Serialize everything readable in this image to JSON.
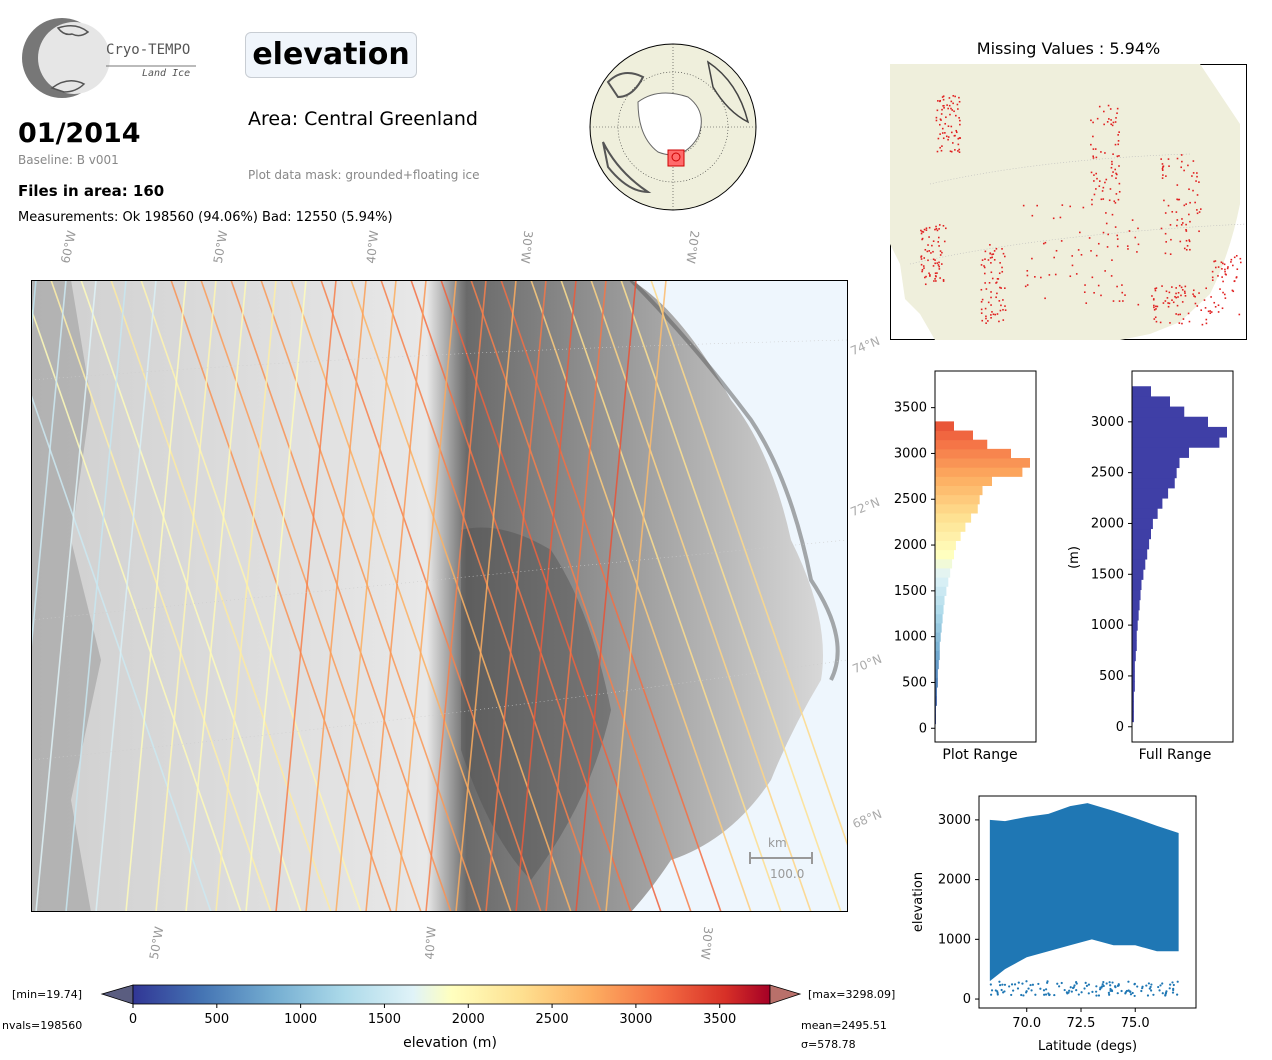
{
  "header": {
    "logo_text": "Cryo-TEMPO",
    "logo_subtext": "Land Ice",
    "variable": "elevation",
    "date": "01/2014",
    "baseline": "Baseline: B v001",
    "files": "Files in area: 160",
    "measurements": "Measurements: Ok 198560 (94.06%) Bad: 12550 (5.94%)",
    "area": "Area: Central Greenland",
    "mask": "Plot data mask: grounded+floating ice"
  },
  "map": {
    "lon_labels_top": [
      "60°W",
      "50°W",
      "40°W",
      "30°W",
      "20°W"
    ],
    "lon_labels_bottom": [
      "50°W",
      "40°W",
      "30°W"
    ],
    "lat_labels": [
      "74°N",
      "72°N",
      "70°N",
      "68°N"
    ],
    "scale_unit": "km",
    "scale_value": "100.0"
  },
  "missing_values": {
    "title": "Missing Values : 5.94%"
  },
  "colorbar": {
    "min_label": "[min=19.74]",
    "max_label": "[max=3298.09]",
    "nvals": "nvals=198560",
    "mean": "mean=2495.51",
    "sigma": "σ=578.78",
    "label": "elevation (m)",
    "ticks": [
      "0",
      "500",
      "1000",
      "1500",
      "2000",
      "2500",
      "3000",
      "3500"
    ]
  },
  "chart_data": [
    {
      "type": "bar",
      "orientation": "horizontal",
      "xlabel": "Plot Range",
      "ylabel": "",
      "ylim": [
        -150,
        3900
      ],
      "yticks": [
        0,
        500,
        1000,
        1500,
        2000,
        2500,
        3000,
        3500
      ],
      "bins_m": [
        100,
        200,
        300,
        400,
        500,
        600,
        700,
        800,
        900,
        1000,
        1100,
        1200,
        1300,
        1400,
        1500,
        1600,
        1700,
        1800,
        1900,
        2000,
        2100,
        2200,
        2300,
        2400,
        2500,
        2600,
        2700,
        2800,
        2900,
        3000,
        3100,
        3200,
        3300
      ],
      "relative_counts": [
        0.01,
        0.01,
        0.02,
        0.02,
        0.03,
        0.03,
        0.04,
        0.05,
        0.05,
        0.06,
        0.07,
        0.08,
        0.09,
        0.1,
        0.12,
        0.14,
        0.16,
        0.18,
        0.2,
        0.22,
        0.27,
        0.32,
        0.38,
        0.45,
        0.47,
        0.5,
        0.6,
        0.92,
        1.0,
        0.8,
        0.55,
        0.4,
        0.2
      ]
    },
    {
      "type": "bar",
      "orientation": "horizontal",
      "xlabel": "Full Range",
      "ylabel": "(m)",
      "ylim": [
        -150,
        3500
      ],
      "yticks": [
        0,
        500,
        1000,
        1500,
        2000,
        2500,
        3000
      ],
      "bins_m": [
        100,
        200,
        300,
        400,
        500,
        600,
        700,
        800,
        900,
        1000,
        1100,
        1200,
        1300,
        1400,
        1500,
        1600,
        1700,
        1800,
        1900,
        2000,
        2100,
        2200,
        2300,
        2400,
        2500,
        2600,
        2700,
        2800,
        2900,
        3000,
        3100,
        3200,
        3300
      ],
      "relative_counts": [
        0.02,
        0.02,
        0.02,
        0.03,
        0.03,
        0.03,
        0.04,
        0.05,
        0.05,
        0.06,
        0.07,
        0.08,
        0.09,
        0.1,
        0.12,
        0.14,
        0.16,
        0.18,
        0.2,
        0.22,
        0.27,
        0.32,
        0.38,
        0.45,
        0.47,
        0.5,
        0.6,
        0.92,
        1.0,
        0.8,
        0.55,
        0.4,
        0.2
      ]
    },
    {
      "type": "scatter",
      "xlabel": "Latitude (degs)",
      "ylabel": "elevation",
      "xlim": [
        67.8,
        77.8
      ],
      "ylim": [
        -150,
        3400
      ],
      "xticks": [
        70.0,
        72.5,
        75.0
      ],
      "yticks": [
        0,
        1000,
        2000,
        3000
      ],
      "color": "#1f77b4",
      "upper_envelope": [
        [
          68.3,
          3000
        ],
        [
          69.0,
          2980
        ],
        [
          70.0,
          3050
        ],
        [
          71.0,
          3100
        ],
        [
          72.0,
          3230
        ],
        [
          72.8,
          3280
        ],
        [
          74.0,
          3150
        ],
        [
          75.0,
          3030
        ],
        [
          76.0,
          2900
        ],
        [
          77.0,
          2780
        ]
      ],
      "lower_envelope": [
        [
          68.3,
          300
        ],
        [
          69.0,
          500
        ],
        [
          70.0,
          700
        ],
        [
          71.0,
          800
        ],
        [
          72.0,
          900
        ],
        [
          73.0,
          1000
        ],
        [
          74.0,
          900
        ],
        [
          75.0,
          900
        ],
        [
          76.0,
          800
        ],
        [
          77.0,
          800
        ]
      ]
    }
  ]
}
